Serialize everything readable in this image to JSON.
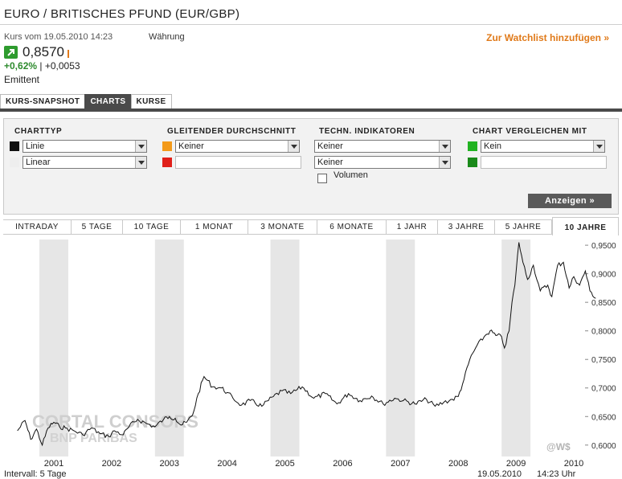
{
  "header": {
    "title": "EURO / BRITISCHES PFUND (EUR/GBP)",
    "kurs_label": "Kurs vom 19.05.2010 14:23",
    "waehrung_label": "Währung",
    "watchlist_link": "Zur Watchlist hinzufügen »",
    "price": "0,8570",
    "change_pct": "+0,62%",
    "change_sep": " | ",
    "change_abs": "+0,0053",
    "emittent": "Emittent",
    "trend_icon": "arrow-up-icon"
  },
  "tabs": [
    {
      "label": "KURS-SNAPSHOT",
      "active": false
    },
    {
      "label": "CHARTS",
      "active": true
    },
    {
      "label": "KURSE",
      "active": false
    }
  ],
  "settings": {
    "charttyp": {
      "heading": "CHARTTYP",
      "type": "Linie",
      "scale": "Linear"
    },
    "gleitender": {
      "heading": "GLEITENDER DURCHSCHNITT",
      "value1": "Keiner",
      "value2": ""
    },
    "indikatoren": {
      "heading": "TECHN. INDIKATOREN",
      "value1": "Keiner",
      "value2": "Keiner",
      "volumen_label": "Volumen"
    },
    "vergleich": {
      "heading": "CHART VERGLEICHEN MIT",
      "value1": "Kein",
      "value2": ""
    },
    "submit_label": "Anzeigen »"
  },
  "ranges": [
    {
      "label": "INTRADAY"
    },
    {
      "label": "5 TAGE"
    },
    {
      "label": "10 TAGE"
    },
    {
      "label": "1 MONAT"
    },
    {
      "label": "3 MONATE"
    },
    {
      "label": "6 MONATE"
    },
    {
      "label": "1 JAHR"
    },
    {
      "label": "3 JAHRE"
    },
    {
      "label": "5 JAHRE"
    },
    {
      "label": "10 JAHRE",
      "active": true
    }
  ],
  "colors": {
    "accent_orange": "#e07a1a",
    "green": "#2e9b2e",
    "dark_tab": "#4a4a4a",
    "swatch_black": "#111111",
    "swatch_light": "#eeeeee",
    "swatch_orange": "#f39a1a",
    "swatch_red": "#e0201a",
    "swatch_green_1": "#22b322",
    "swatch_green_2": "#1a8a1a",
    "band": "#e6e6e6",
    "line": "#111111"
  },
  "chart_data": {
    "type": "line",
    "x_labels": [
      "2001",
      "2002",
      "2003",
      "2004",
      "2005",
      "2006",
      "2007",
      "2008",
      "2009",
      "2010"
    ],
    "ylim": [
      0.58,
      0.96
    ],
    "y_ticks": [
      "0,9500",
      "0,9000",
      "0,8500",
      "0,8000",
      "0,7500",
      "0,7000",
      "0,6500",
      "0,6000"
    ],
    "series": [
      {
        "x": [
          2000.37,
          2000.5,
          2000.6,
          2000.7,
          2000.8,
          2000.9,
          2001.0,
          2001.1,
          2001.2,
          2001.35,
          2001.5,
          2001.65,
          2001.8,
          2001.95,
          2002.05,
          2002.2,
          2002.3,
          2002.45,
          2002.6,
          2002.75,
          2002.9,
          2003.0,
          2003.1,
          2003.2,
          2003.3,
          2003.4,
          2003.5,
          2003.6,
          2003.75,
          2003.9,
          2004.0,
          2004.1,
          2004.25,
          2004.4,
          2004.6,
          2004.8,
          2004.95,
          2005.1,
          2005.3,
          2005.5,
          2005.7,
          2005.9,
          2006.1,
          2006.3,
          2006.5,
          2006.7,
          2006.9,
          2007.05,
          2007.25,
          2007.45,
          2007.6,
          2007.75,
          2007.9,
          2008.0,
          2008.1,
          2008.2,
          2008.3,
          2008.45,
          2008.55,
          2008.65,
          2008.75,
          2008.8,
          2008.88,
          2008.93,
          2008.98,
          2009.05,
          2009.12,
          2009.2,
          2009.3,
          2009.42,
          2009.55,
          2009.62,
          2009.72,
          2009.82,
          2009.92,
          2010.0,
          2010.1,
          2010.2,
          2010.28,
          2010.38
        ],
        "y": [
          0.625,
          0.643,
          0.61,
          0.628,
          0.6,
          0.63,
          0.64,
          0.632,
          0.63,
          0.625,
          0.618,
          0.63,
          0.62,
          0.615,
          0.625,
          0.618,
          0.632,
          0.645,
          0.638,
          0.632,
          0.645,
          0.65,
          0.647,
          0.635,
          0.64,
          0.652,
          0.69,
          0.72,
          0.702,
          0.7,
          0.692,
          0.682,
          0.67,
          0.678,
          0.668,
          0.685,
          0.695,
          0.69,
          0.702,
          0.682,
          0.69,
          0.672,
          0.69,
          0.678,
          0.686,
          0.672,
          0.682,
          0.678,
          0.672,
          0.68,
          0.668,
          0.675,
          0.68,
          0.685,
          0.715,
          0.75,
          0.77,
          0.79,
          0.8,
          0.792,
          0.79,
          0.77,
          0.8,
          0.85,
          0.88,
          0.955,
          0.92,
          0.89,
          0.915,
          0.87,
          0.88,
          0.86,
          0.915,
          0.92,
          0.875,
          0.895,
          0.88,
          0.905,
          0.87,
          0.857
        ]
      }
    ],
    "grid": false,
    "legend": "none"
  },
  "footer": {
    "intervall": "Intervall: 5 Tage",
    "date": "19.05.2010",
    "time": "14:23 Uhr"
  },
  "watermark": {
    "brand": "CORTAL CONSORS",
    "sub": "BNP PARIBAS",
    "credit": "@W$"
  }
}
